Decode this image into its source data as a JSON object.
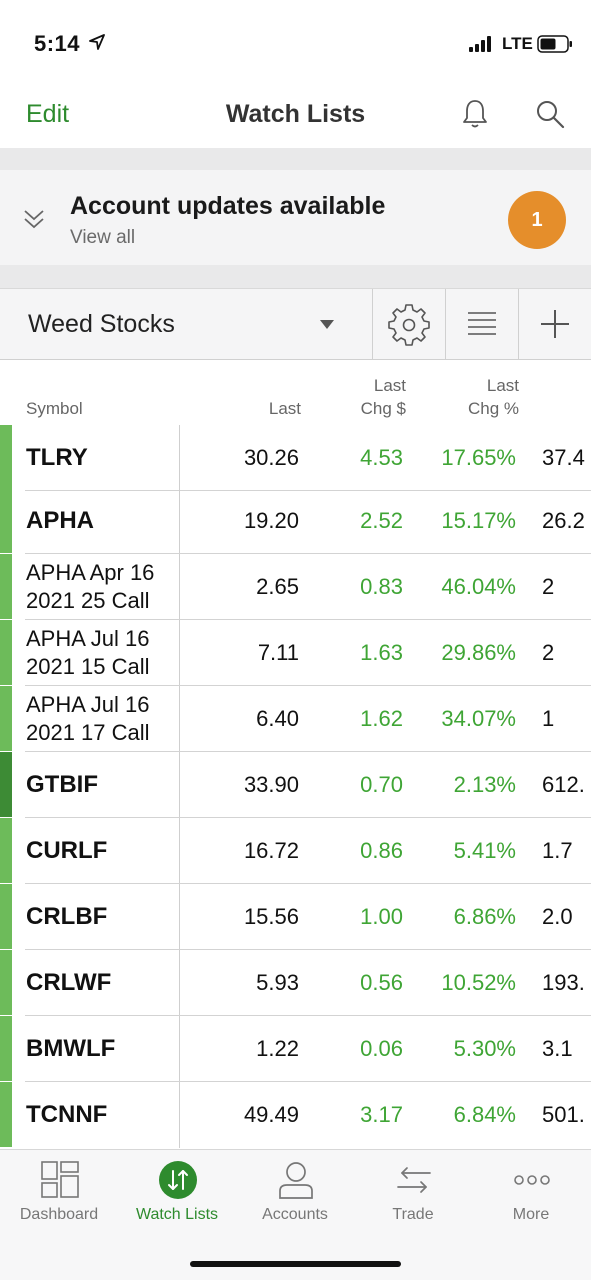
{
  "status_bar": {
    "time": "5:14",
    "network": "LTE"
  },
  "header": {
    "edit_label": "Edit",
    "title": "Watch Lists"
  },
  "updates_banner": {
    "title": "Account updates available",
    "link": "View all",
    "badge_count": "1"
  },
  "toolbar": {
    "list_name": "Weed Stocks"
  },
  "columns": {
    "symbol": "Symbol",
    "last": "Last",
    "chg_line1": "Last",
    "chg_line2": "Chg $",
    "pct_line1": "Last",
    "pct_line2": "Chg %"
  },
  "rows": [
    {
      "symbol": "TLRY",
      "last": "30.26",
      "chg": "4.53",
      "pct": "17.65%",
      "extra": "37.4"
    },
    {
      "symbol": "APHA",
      "last": "19.20",
      "chg": "2.52",
      "pct": "15.17%",
      "extra": "26.2"
    },
    {
      "symbol": "APHA Apr 16 2021 25 Call",
      "last": "2.65",
      "chg": "0.83",
      "pct": "46.04%",
      "extra": "2"
    },
    {
      "symbol": "APHA Jul 16 2021 15 Call",
      "last": "7.11",
      "chg": "1.63",
      "pct": "29.86%",
      "extra": "2"
    },
    {
      "symbol": "APHA Jul 16 2021 17 Call",
      "last": "6.40",
      "chg": "1.62",
      "pct": "34.07%",
      "extra": "1"
    },
    {
      "symbol": "GTBIF",
      "last": "33.90",
      "chg": "0.70",
      "pct": "2.13%",
      "extra": "612."
    },
    {
      "symbol": "CURLF",
      "last": "16.72",
      "chg": "0.86",
      "pct": "5.41%",
      "extra": "1.7"
    },
    {
      "symbol": "CRLBF",
      "last": "15.56",
      "chg": "1.00",
      "pct": "6.86%",
      "extra": "2.0"
    },
    {
      "symbol": "CRLWF",
      "last": "5.93",
      "chg": "0.56",
      "pct": "10.52%",
      "extra": "193."
    },
    {
      "symbol": "BMWLF",
      "last": "1.22",
      "chg": "0.06",
      "pct": "5.30%",
      "extra": "3.1"
    },
    {
      "symbol": "TCNNF",
      "last": "49.49",
      "chg": "3.17",
      "pct": "6.84%",
      "extra": "501."
    }
  ],
  "tabs": [
    {
      "label": "Dashboard",
      "icon": "dashboard-icon"
    },
    {
      "label": "Watch Lists",
      "icon": "watch-lists-icon",
      "active": true
    },
    {
      "label": "Accounts",
      "icon": "accounts-icon"
    },
    {
      "label": "Trade",
      "icon": "trade-icon"
    },
    {
      "label": "More",
      "icon": "more-icon"
    }
  ],
  "colors": {
    "accent": "#2e8b2e",
    "gain": "#3fa535",
    "badge": "#e58e2b",
    "row_bar": "#6dbb5a",
    "row_bar_dark": "#3d8b35"
  }
}
